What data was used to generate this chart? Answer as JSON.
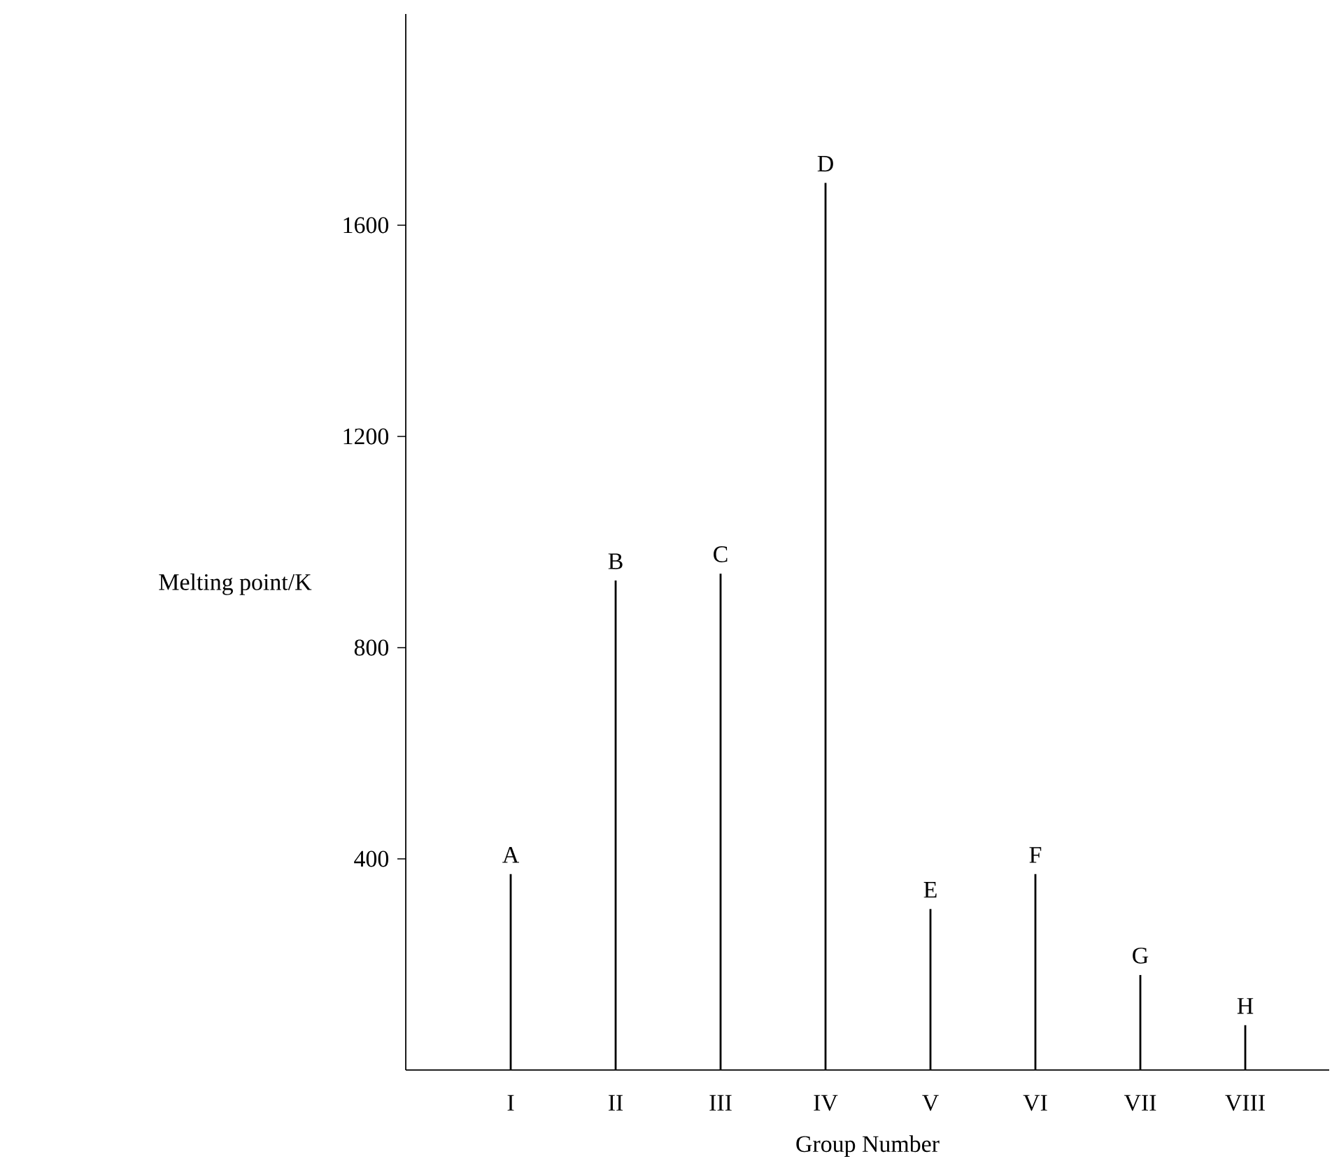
{
  "chart_data": {
    "type": "bar",
    "xlabel": "Group Number",
    "ylabel": "Melting point/K",
    "categories": [
      "I",
      "II",
      "III",
      "IV",
      "V",
      "VI",
      "VII",
      "VIII"
    ],
    "values": [
      371,
      927,
      940,
      1680,
      305,
      371,
      180,
      85
    ],
    "color": "#000000",
    "marker": "none",
    "ylim": [
      0,
      2000
    ],
    "yticks": [
      400,
      800,
      1200,
      1600
    ],
    "annotations": [
      {
        "text": "A",
        "x": "I",
        "y": 371
      },
      {
        "text": "B",
        "x": "II",
        "y": 927
      },
      {
        "text": "C",
        "x": "III",
        "y": 940
      },
      {
        "text": "D",
        "x": "IV",
        "y": 1680
      },
      {
        "text": "E",
        "x": "V",
        "y": 305
      },
      {
        "text": "F",
        "x": "VI",
        "y": 371
      },
      {
        "text": "G",
        "x": "VII",
        "y": 180
      },
      {
        "text": "H",
        "x": "VIII",
        "y": 85
      }
    ]
  }
}
